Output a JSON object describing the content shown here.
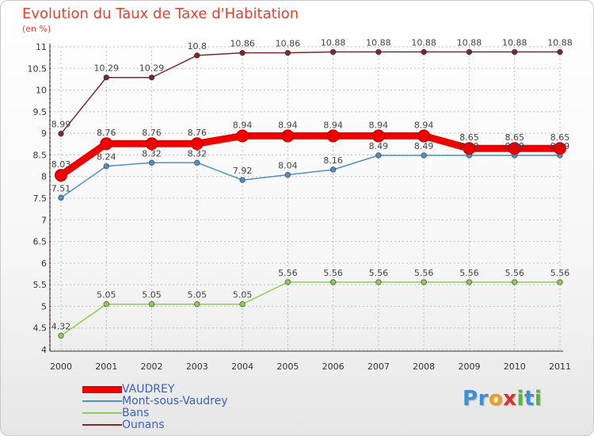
{
  "chart_data": {
    "type": "line",
    "title": "Evolution du Taux de Taxe d'Habitation",
    "unit_label": "(en %)",
    "x": [
      "2000",
      "2001",
      "2002",
      "2003",
      "2004",
      "2005",
      "2006",
      "2007",
      "2008",
      "2009",
      "2010",
      "2011"
    ],
    "ylim": [
      4,
      11
    ],
    "yticks": [
      "4",
      "4.5",
      "5",
      "5.5",
      "6",
      "6.5",
      "7",
      "7.5",
      "8",
      "8.5",
      "9",
      "9.5",
      "10",
      "10.5",
      "11"
    ],
    "grid": true,
    "legend_position": "bottom-left",
    "series": [
      {
        "name": "VAUDREY",
        "color": "#ee0000",
        "values": [
          8.03,
          8.76,
          8.76,
          8.76,
          8.94,
          8.94,
          8.94,
          8.94,
          8.94,
          8.65,
          8.65,
          8.65
        ],
        "labels": [
          "8.03",
          "8.76",
          "8.76",
          "8.76",
          "8.94",
          "8.94",
          "8.94",
          "8.94",
          "8.94",
          "8.65",
          "8.65",
          "8.65"
        ]
      },
      {
        "name": "Mont-sous-Vaudrey",
        "color": "#4f90c8",
        "values": [
          7.51,
          8.24,
          8.32,
          8.32,
          7.92,
          8.04,
          8.16,
          8.49,
          8.49,
          8.49,
          8.49,
          8.49
        ],
        "labels": [
          "7.51",
          "8.24",
          "8.32",
          "8.32",
          "7.92",
          "8.04",
          "8.16",
          "8.49",
          "8.49",
          "8.49",
          "8.49",
          "8.49"
        ]
      },
      {
        "name": "Bans",
        "color": "#8ccf50",
        "values": [
          4.32,
          5.05,
          5.05,
          5.05,
          5.05,
          5.56,
          5.56,
          5.56,
          5.56,
          5.56,
          5.56,
          5.56
        ],
        "labels": [
          "4.32",
          "5.05",
          "5.05",
          "5.05",
          "5.05",
          "5.56",
          "5.56",
          "5.56",
          "5.56",
          "5.56",
          "5.56",
          "5.56"
        ]
      },
      {
        "name": "Ounans",
        "color": "#7a2a2a",
        "values": [
          8.99,
          10.29,
          10.29,
          10.8,
          10.86,
          10.86,
          10.88,
          10.88,
          10.88,
          10.88,
          10.88,
          10.88
        ],
        "labels": [
          "8.99",
          "10.29",
          "10.29",
          "10.8",
          "10.86",
          "10.86",
          "10.88",
          "10.88",
          "10.88",
          "10.88",
          "10.88",
          "10.88"
        ]
      }
    ]
  },
  "brand": {
    "letters": [
      "P",
      "r",
      "o",
      "x",
      "i",
      "t",
      "i"
    ],
    "colors": [
      "#3f8fd2",
      "#3f8fd2",
      "#e8a020",
      "#d83030",
      "#60b040",
      "#3f8fd2",
      "#60b040"
    ]
  }
}
